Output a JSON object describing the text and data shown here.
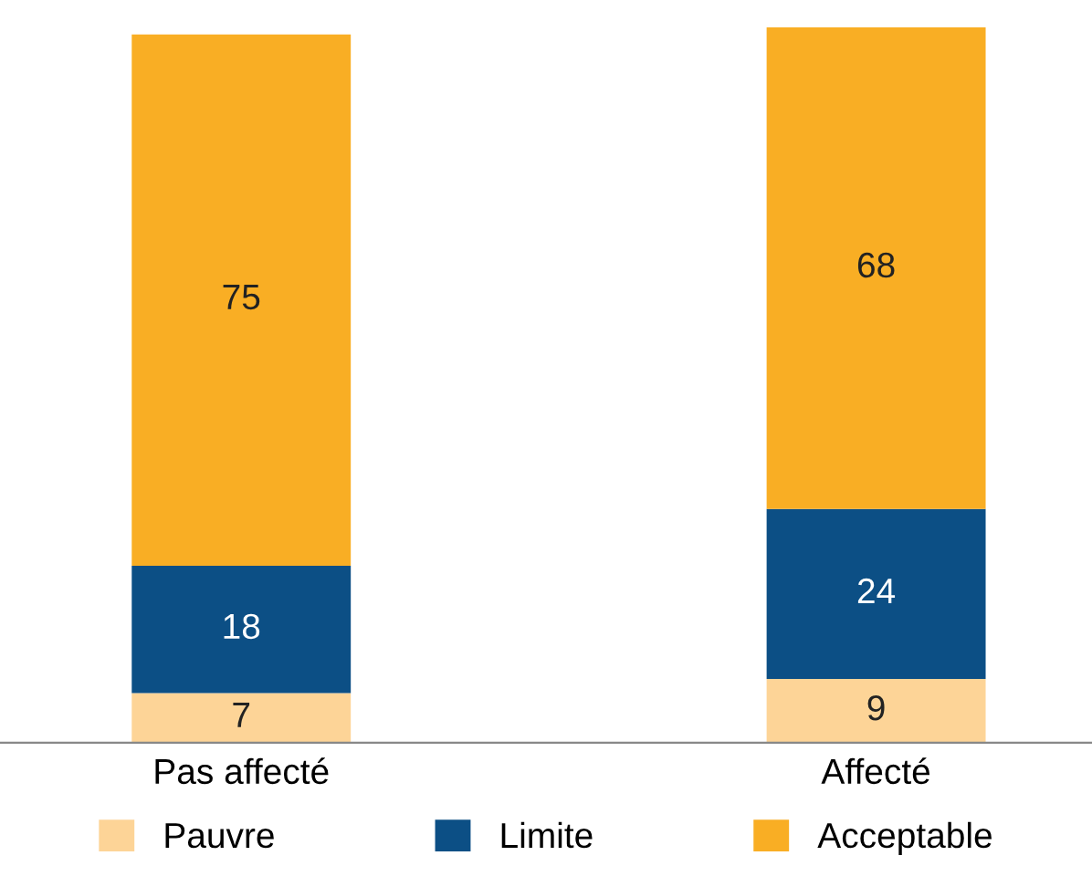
{
  "chart_data": {
    "type": "bar",
    "stacked": true,
    "categories": [
      "Pas affecté",
      "Affecté"
    ],
    "series": [
      {
        "name": "Pauvre",
        "color": "#fdd497",
        "values": [
          7,
          9
        ]
      },
      {
        "name": "Limite",
        "color": "#0c4f85",
        "values": [
          18,
          24
        ]
      },
      {
        "name": "Acceptable",
        "color": "#f9ae24",
        "values": [
          75,
          68
        ]
      }
    ],
    "data_labels": true,
    "legend": "bottom",
    "grid": false
  }
}
